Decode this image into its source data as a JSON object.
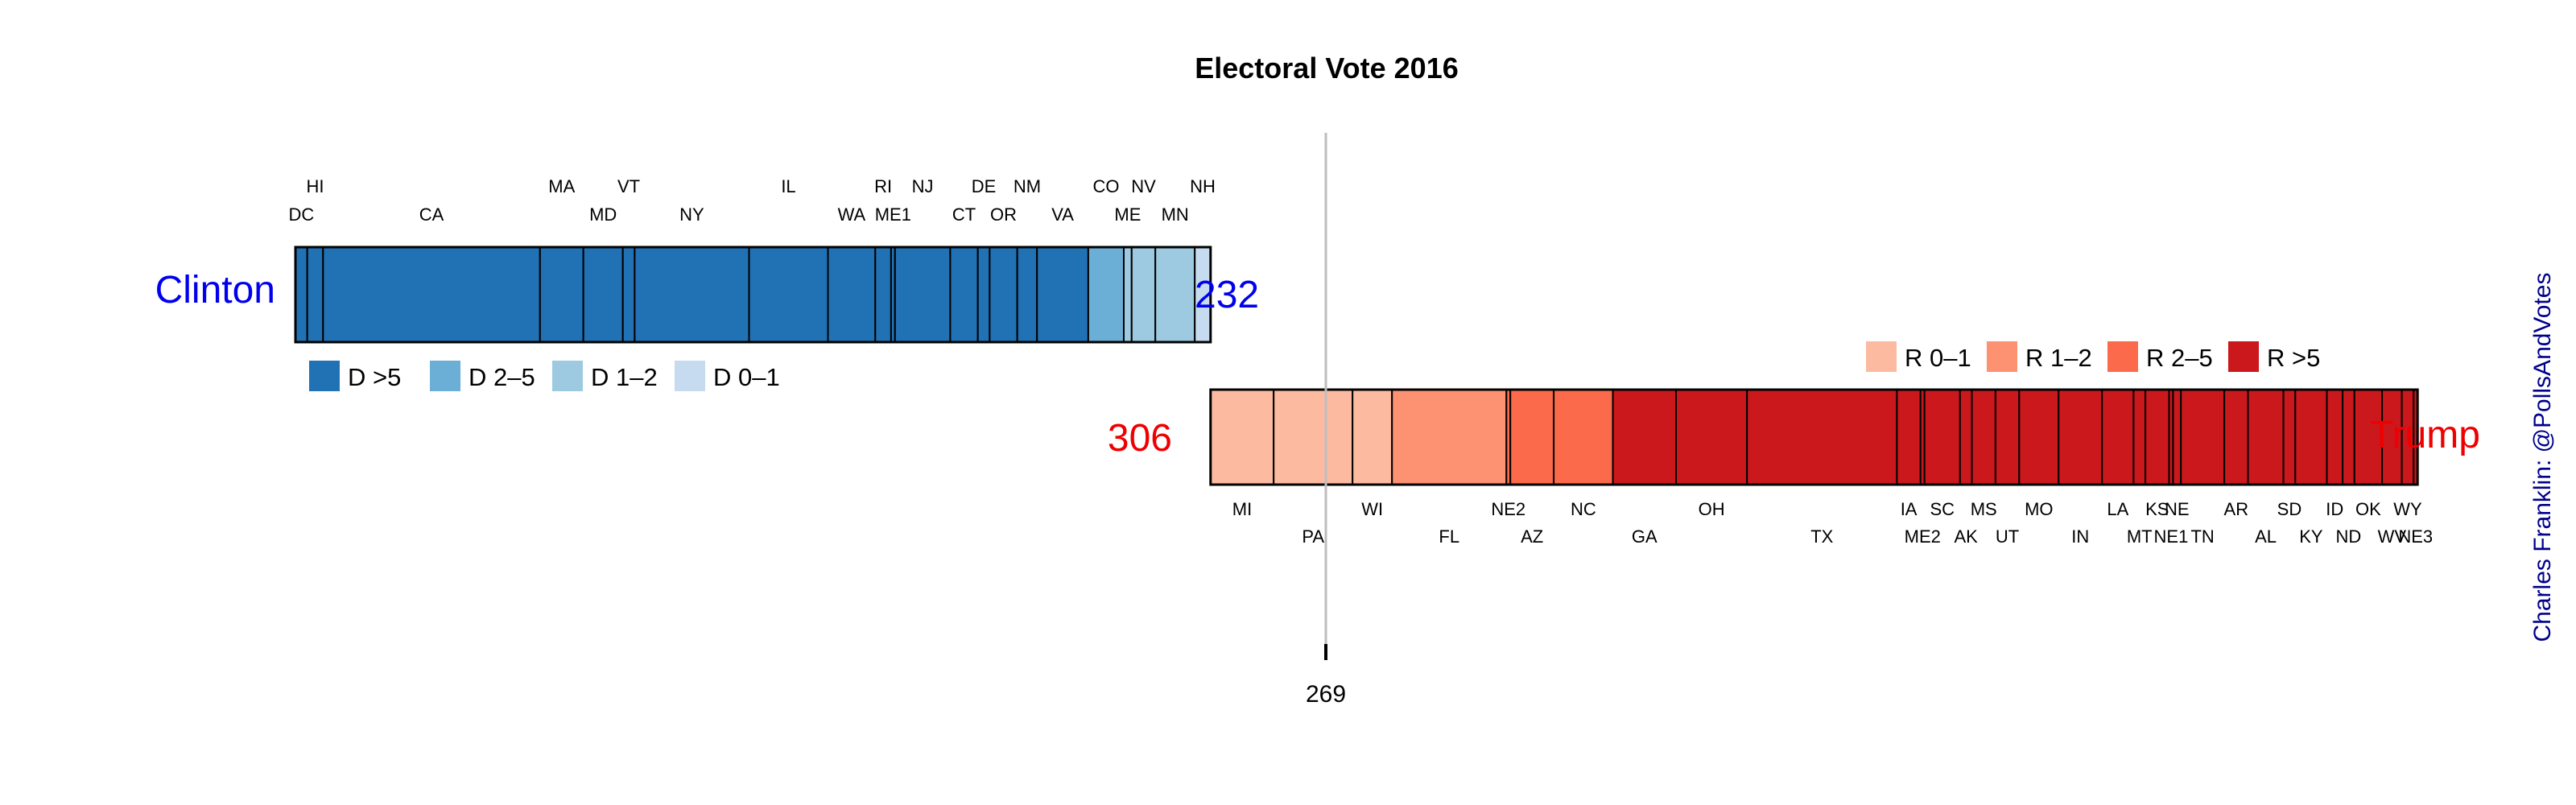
{
  "chart_data": {
    "type": "bar",
    "title": "Electoral Vote 2016",
    "threshold": 269,
    "total_votes": 538,
    "clinton": {
      "name": "Clinton",
      "total": "232",
      "states": [
        {
          "state": "DC",
          "ev": 3,
          "cat": "D >5"
        },
        {
          "state": "HI",
          "ev": 4,
          "cat": "D >5"
        },
        {
          "state": "CA",
          "ev": 55,
          "cat": "D >5"
        },
        {
          "state": "MA",
          "ev": 11,
          "cat": "D >5"
        },
        {
          "state": "MD",
          "ev": 10,
          "cat": "D >5"
        },
        {
          "state": "VT",
          "ev": 3,
          "cat": "D >5"
        },
        {
          "state": "NY",
          "ev": 29,
          "cat": "D >5"
        },
        {
          "state": "IL",
          "ev": 20,
          "cat": "D >5"
        },
        {
          "state": "WA",
          "ev": 12,
          "cat": "D >5"
        },
        {
          "state": "RI",
          "ev": 4,
          "cat": "D >5"
        },
        {
          "state": "ME1",
          "ev": 1,
          "cat": "D >5"
        },
        {
          "state": "NJ",
          "ev": 14,
          "cat": "D >5"
        },
        {
          "state": "CT",
          "ev": 7,
          "cat": "D >5"
        },
        {
          "state": "DE",
          "ev": 3,
          "cat": "D >5"
        },
        {
          "state": "OR",
          "ev": 7,
          "cat": "D >5"
        },
        {
          "state": "NM",
          "ev": 5,
          "cat": "D >5"
        },
        {
          "state": "VA",
          "ev": 13,
          "cat": "D >5"
        },
        {
          "state": "CO",
          "ev": 9,
          "cat": "D 2–5"
        },
        {
          "state": "ME",
          "ev": 2,
          "cat": "D 1–2"
        },
        {
          "state": "NV",
          "ev": 6,
          "cat": "D 1–2"
        },
        {
          "state": "MN",
          "ev": 10,
          "cat": "D 1–2"
        },
        {
          "state": "NH",
          "ev": 4,
          "cat": "D 0–1"
        }
      ]
    },
    "trump": {
      "name": "Trump",
      "total": "306",
      "states": [
        {
          "state": "MI",
          "ev": 16,
          "cat": "R 0–1"
        },
        {
          "state": "PA",
          "ev": 20,
          "cat": "R 0–1"
        },
        {
          "state": "WI",
          "ev": 10,
          "cat": "R 0–1"
        },
        {
          "state": "FL",
          "ev": 29,
          "cat": "R 1–2"
        },
        {
          "state": "NE2",
          "ev": 1,
          "cat": "R 2–5"
        },
        {
          "state": "AZ",
          "ev": 11,
          "cat": "R 2–5"
        },
        {
          "state": "NC",
          "ev": 15,
          "cat": "R 2–5"
        },
        {
          "state": "GA",
          "ev": 16,
          "cat": "R >5"
        },
        {
          "state": "OH",
          "ev": 18,
          "cat": "R >5"
        },
        {
          "state": "TX",
          "ev": 38,
          "cat": "R >5"
        },
        {
          "state": "IA",
          "ev": 6,
          "cat": "R >5"
        },
        {
          "state": "ME2",
          "ev": 1,
          "cat": "R >5"
        },
        {
          "state": "SC",
          "ev": 9,
          "cat": "R >5"
        },
        {
          "state": "AK",
          "ev": 3,
          "cat": "R >5"
        },
        {
          "state": "MS",
          "ev": 6,
          "cat": "R >5"
        },
        {
          "state": "UT",
          "ev": 6,
          "cat": "R >5"
        },
        {
          "state": "MO",
          "ev": 10,
          "cat": "R >5"
        },
        {
          "state": "IN",
          "ev": 11,
          "cat": "R >5"
        },
        {
          "state": "LA",
          "ev": 8,
          "cat": "R >5"
        },
        {
          "state": "MT",
          "ev": 3,
          "cat": "R >5"
        },
        {
          "state": "KS",
          "ev": 6,
          "cat": "R >5"
        },
        {
          "state": "NE1",
          "ev": 1,
          "cat": "R >5"
        },
        {
          "state": "NE",
          "ev": 2,
          "cat": "R >5"
        },
        {
          "state": "TN",
          "ev": 11,
          "cat": "R >5"
        },
        {
          "state": "AR",
          "ev": 6,
          "cat": "R >5"
        },
        {
          "state": "AL",
          "ev": 9,
          "cat": "R >5"
        },
        {
          "state": "SD",
          "ev": 3,
          "cat": "R >5"
        },
        {
          "state": "KY",
          "ev": 8,
          "cat": "R >5"
        },
        {
          "state": "ID",
          "ev": 4,
          "cat": "R >5"
        },
        {
          "state": "ND",
          "ev": 3,
          "cat": "R >5"
        },
        {
          "state": "OK",
          "ev": 7,
          "cat": "R >5"
        },
        {
          "state": "WV",
          "ev": 5,
          "cat": "R >5"
        },
        {
          "state": "WY",
          "ev": 3,
          "cat": "R >5"
        },
        {
          "state": "NE3",
          "ev": 1,
          "cat": "R >5"
        }
      ]
    },
    "legend_d": [
      {
        "label": "D >5",
        "color": "#2171b5"
      },
      {
        "label": "D 2–5",
        "color": "#6baed6"
      },
      {
        "label": "D 1–2",
        "color": "#9ecae1"
      },
      {
        "label": "D 0–1",
        "color": "#c6dbef"
      }
    ],
    "legend_r": [
      {
        "label": "R 0–1",
        "color": "#fcbba1"
      },
      {
        "label": "R 1–2",
        "color": "#fc9272"
      },
      {
        "label": "R 2–5",
        "color": "#fb6a4a"
      },
      {
        "label": "R >5",
        "color": "#cb181d"
      }
    ],
    "colors": {
      "clinton_text": "#0000ee",
      "trump_text": "#ee0000",
      "credit_text": "#00008b",
      "threshold_line": "#bebebe"
    },
    "credit": "Charles Franklin: @PollsAndVotes"
  }
}
